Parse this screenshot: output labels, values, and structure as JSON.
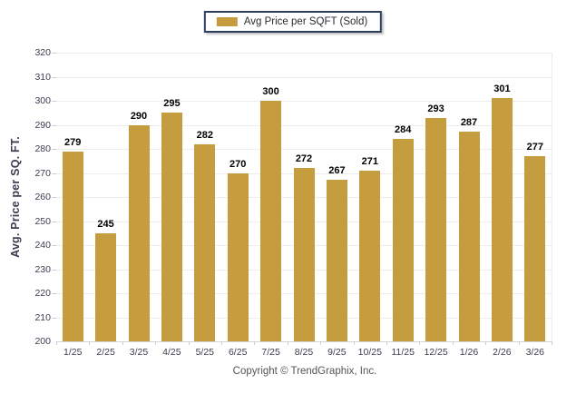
{
  "chart_data": {
    "type": "bar",
    "title": "",
    "categories": [
      "1/25",
      "2/25",
      "3/25",
      "4/25",
      "5/25",
      "6/25",
      "7/25",
      "8/25",
      "9/25",
      "10/25",
      "11/25",
      "12/25",
      "1/26",
      "2/26",
      "3/26"
    ],
    "values": [
      279,
      245,
      290,
      295,
      282,
      270,
      300,
      272,
      267,
      271,
      284,
      293,
      287,
      301,
      277
    ],
    "series_name": "Avg Price per SQFT (Sold)",
    "xlabel": "",
    "ylabel": "Avg. Price per SQ. FT.",
    "ylim": [
      200,
      320
    ],
    "ytick_step": 10,
    "yticks": [
      200,
      210,
      220,
      230,
      240,
      250,
      260,
      270,
      280,
      290,
      300,
      310,
      320
    ],
    "grid": "horizontal",
    "legend_position": "top-center",
    "bar_color": "#C59C3E",
    "value_labels": "above-bars"
  },
  "legend": {
    "label": "Avg Price per SQFT (Sold)",
    "swatch_color": "#C59C3E"
  },
  "y_axis": {
    "title": "Avg. Price per SQ. FT."
  },
  "footer": {
    "copyright": "Copyright © TrendGraphix, Inc."
  }
}
